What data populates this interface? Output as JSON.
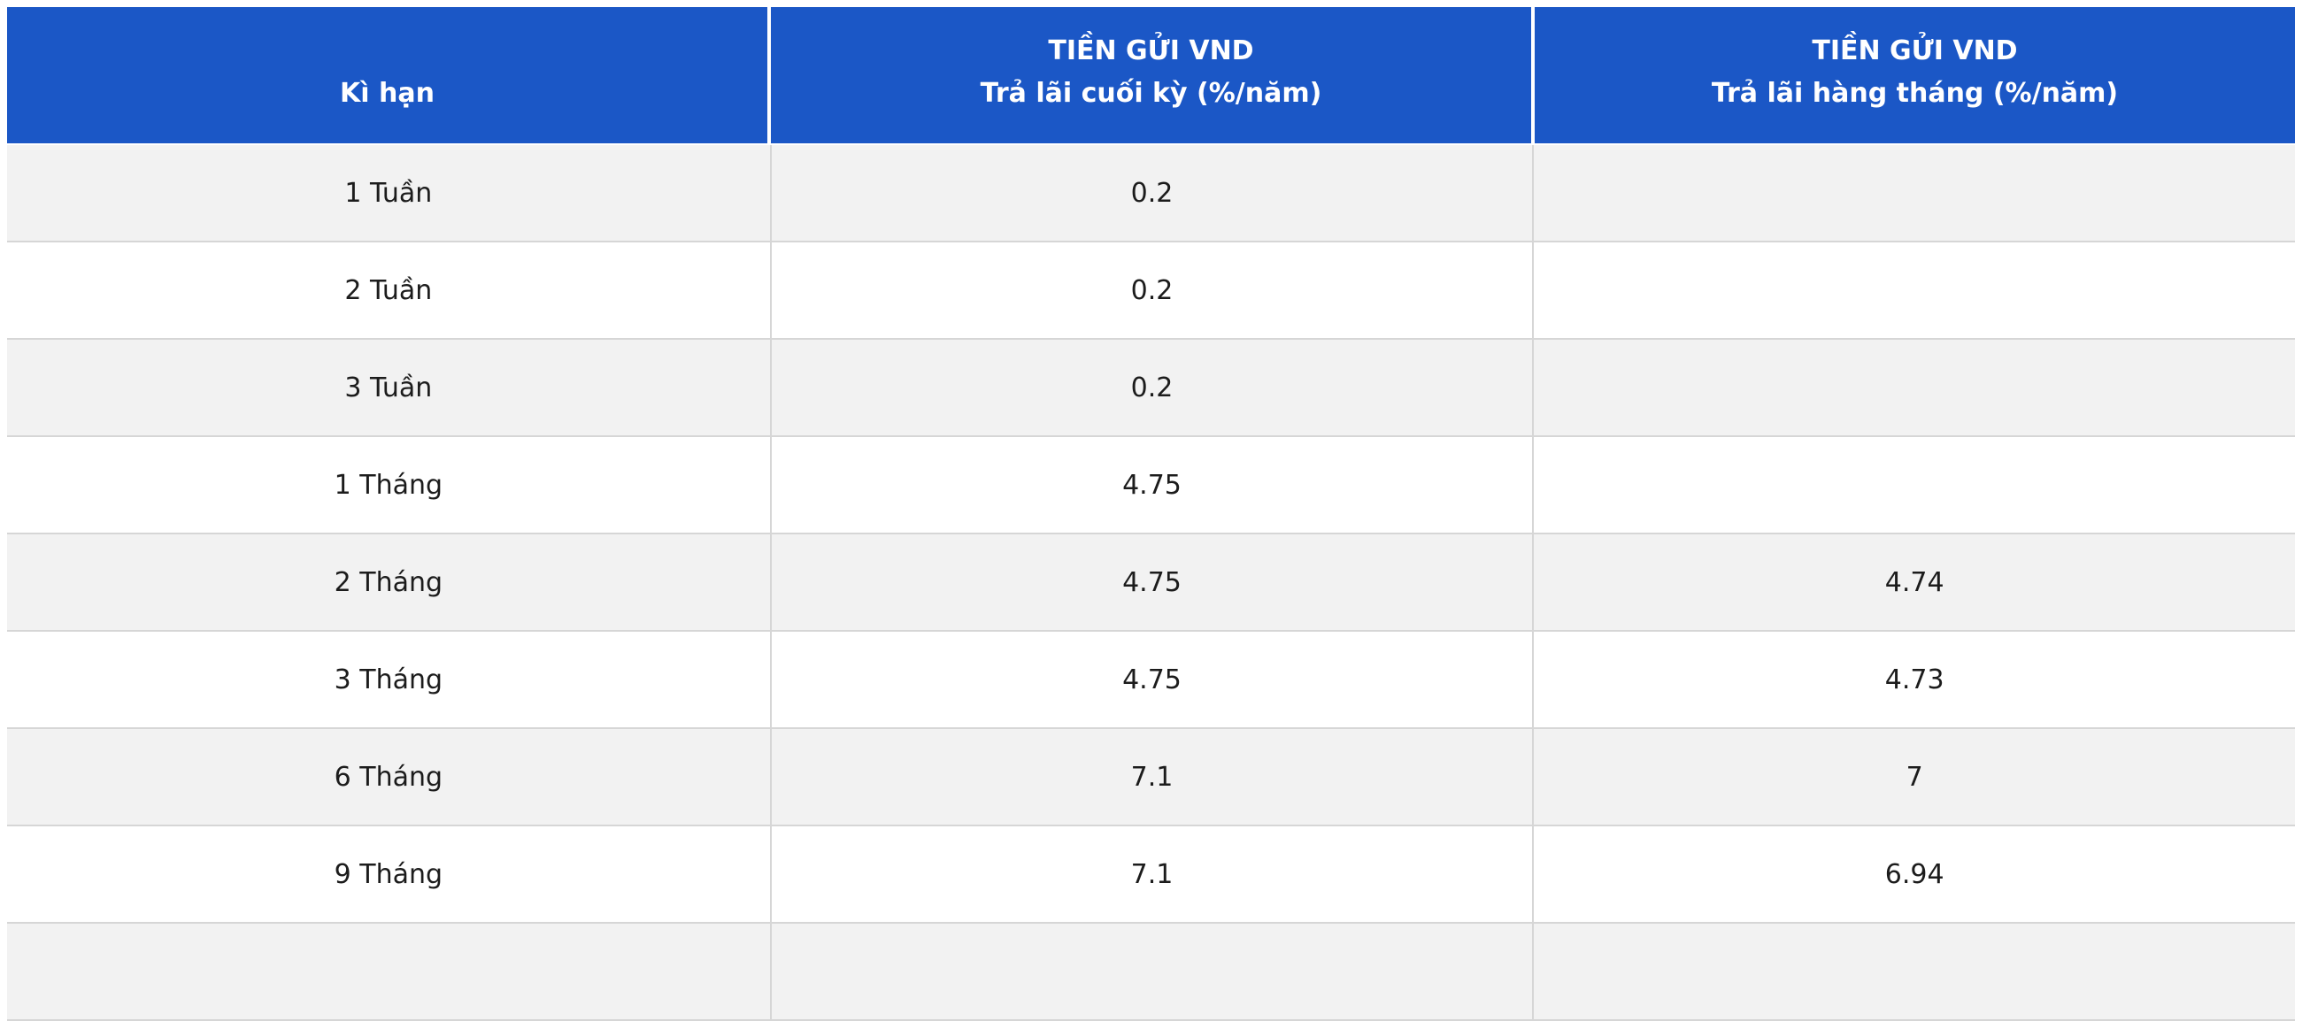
{
  "chart_data": {
    "type": "table",
    "title": "",
    "columns": [
      "Kì hạn",
      "TIỀN GỬI VND Trả lãi cuối kỳ (%/năm)",
      "TIỀN GỬI VND Trả lãi hàng tháng (%/năm)"
    ],
    "rows": [
      [
        "1 Tuần",
        "0.2",
        ""
      ],
      [
        "2 Tuần",
        "0.2",
        ""
      ],
      [
        "3 Tuần",
        "0.2",
        ""
      ],
      [
        "1 Tháng",
        "4.75",
        ""
      ],
      [
        "2 Tháng",
        "4.75",
        "4.74"
      ],
      [
        "3 Tháng",
        "4.75",
        "4.73"
      ],
      [
        "6 Tháng",
        "7.1",
        "7"
      ],
      [
        "9 Tháng",
        "7.1",
        "6.94"
      ]
    ]
  },
  "table": {
    "headers": {
      "col1": "Kì hạn",
      "col2_line1": "TIỀN GỬI VND",
      "col2_line2": "Trả lãi cuối kỳ (%/năm)",
      "col3_line1": "TIỀN GỬI VND",
      "col3_line2": "Trả lãi hàng tháng (%/năm)"
    },
    "rows": [
      {
        "term": "1 Tuần",
        "end_of_term_rate": "0.2",
        "monthly_rate": ""
      },
      {
        "term": "2 Tuần",
        "end_of_term_rate": "0.2",
        "monthly_rate": ""
      },
      {
        "term": "3 Tuần",
        "end_of_term_rate": "0.2",
        "monthly_rate": ""
      },
      {
        "term": "1 Tháng",
        "end_of_term_rate": "4.75",
        "monthly_rate": ""
      },
      {
        "term": "2 Tháng",
        "end_of_term_rate": "4.75",
        "monthly_rate": "4.74"
      },
      {
        "term": "3 Tháng",
        "end_of_term_rate": "4.75",
        "monthly_rate": "4.73"
      },
      {
        "term": "6 Tháng",
        "end_of_term_rate": "7.1",
        "monthly_rate": "7"
      },
      {
        "term": "9 Tháng",
        "end_of_term_rate": "7.1",
        "monthly_rate": "6.94"
      },
      {
        "term": "",
        "end_of_term_rate": "",
        "monthly_rate": ""
      }
    ],
    "colors": {
      "header_bg": "#1B57C6",
      "header_text": "#FFFFFF",
      "stripe_bg": "#F2F2F2",
      "row_bg": "#FFFFFF",
      "border": "#D6D6D6",
      "body_text": "#1C1C1C"
    }
  }
}
